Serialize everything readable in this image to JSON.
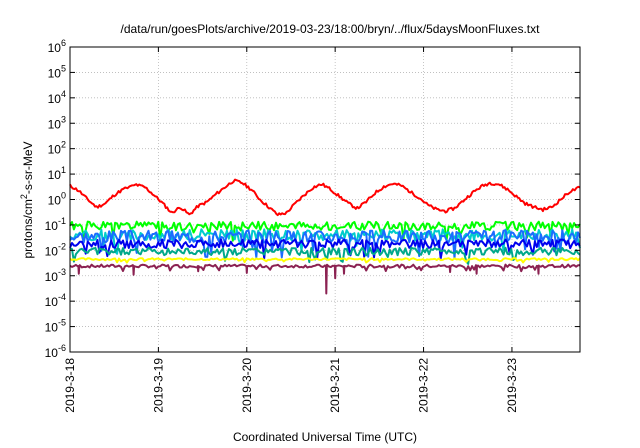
{
  "chart_data": {
    "type": "line",
    "title": "/data/run/goesPlots/archive/2019-03-23/18:00/bryn/../flux/5daysMoonFluxes.txt",
    "xlabel": "Coordinated Universal Time (UTC)",
    "ylabel": {
      "prefix": "protons/cm",
      "sup": "2",
      "suffix": "-s-sr-MeV"
    },
    "yscale": "log",
    "ylim_exp": [
      -6,
      6
    ],
    "y_tick_exponents": [
      6,
      5,
      4,
      3,
      2,
      1,
      0,
      -1,
      -2,
      -3,
      -4,
      -5,
      -6
    ],
    "y_tick_base": "10",
    "xlim_days": [
      0,
      5.77
    ],
    "x_tick_labels": [
      "2019-3-18",
      "2019-3-19",
      "2019-3-20",
      "2019-3-21",
      "2019-3-22",
      "2019-3-23"
    ],
    "x_tick_days": [
      0,
      1,
      2,
      3,
      4,
      5
    ],
    "grid": true,
    "series": [
      {
        "color": "#ff0000",
        "values": [
          [
            0.0,
            3.5
          ],
          [
            0.1,
            2.2
          ],
          [
            0.2,
            1.0
          ],
          [
            0.3,
            0.5
          ],
          [
            0.4,
            0.7
          ],
          [
            0.5,
            1.5
          ],
          [
            0.6,
            2.5
          ],
          [
            0.75,
            3.8
          ],
          [
            0.85,
            3.0
          ],
          [
            0.95,
            1.5
          ],
          [
            1.05,
            0.7
          ],
          [
            1.15,
            0.3
          ],
          [
            1.25,
            0.5
          ],
          [
            1.35,
            0.25
          ],
          [
            1.45,
            0.55
          ],
          [
            1.55,
            0.8
          ],
          [
            1.65,
            1.6
          ],
          [
            1.75,
            3.0
          ],
          [
            1.85,
            5.5
          ],
          [
            1.95,
            4.5
          ],
          [
            2.05,
            2.5
          ],
          [
            2.15,
            1.0
          ],
          [
            2.25,
            0.5
          ],
          [
            2.35,
            0.25
          ],
          [
            2.45,
            0.3
          ],
          [
            2.55,
            0.7
          ],
          [
            2.65,
            1.5
          ],
          [
            2.75,
            3.0
          ],
          [
            2.85,
            4.0
          ],
          [
            2.95,
            2.5
          ],
          [
            3.05,
            1.3
          ],
          [
            3.15,
            0.7
          ],
          [
            3.25,
            0.45
          ],
          [
            3.35,
            0.8
          ],
          [
            3.45,
            1.8
          ],
          [
            3.55,
            3.2
          ],
          [
            3.65,
            4.2
          ],
          [
            3.75,
            3.5
          ],
          [
            3.85,
            2.0
          ],
          [
            3.95,
            1.2
          ],
          [
            4.05,
            0.6
          ],
          [
            4.15,
            0.4
          ],
          [
            4.25,
            0.35
          ],
          [
            4.35,
            0.45
          ],
          [
            4.45,
            0.9
          ],
          [
            4.55,
            1.8
          ],
          [
            4.65,
            3.2
          ],
          [
            4.75,
            4.5
          ],
          [
            4.85,
            4.0
          ],
          [
            4.95,
            2.5
          ],
          [
            5.05,
            1.3
          ],
          [
            5.15,
            0.7
          ],
          [
            5.25,
            0.5
          ],
          [
            5.35,
            0.4
          ],
          [
            5.45,
            0.5
          ],
          [
            5.55,
            1.0
          ],
          [
            5.65,
            2.0
          ],
          [
            5.77,
            3.0
          ]
        ]
      },
      {
        "color": "#00ff00",
        "base": 0.09,
        "amp": 0.35,
        "seed": 1
      },
      {
        "color": "#00cccc",
        "base": 0.04,
        "amp": 0.45,
        "seed": 2
      },
      {
        "color": "#1a6cff",
        "base": 0.035,
        "amp": 0.5,
        "seed": 3
      },
      {
        "color": "#0000ee",
        "base": 0.018,
        "amp": 0.35,
        "seed": 4
      },
      {
        "color": "#00a88a",
        "base": 0.009,
        "amp": 0.3,
        "seed": 5
      },
      {
        "color": "#ffff00",
        "base": 0.0045,
        "amp": 0.08,
        "seed": 6
      },
      {
        "color": "#8b2252",
        "base": 0.0024,
        "amp": 0.12,
        "seed": 7,
        "dips": [
          [
            0.1,
            0.0012
          ],
          [
            0.72,
            0.0011
          ],
          [
            1.45,
            0.0015
          ],
          [
            2.0,
            0.0013
          ],
          [
            2.9,
            0.0002
          ],
          [
            3.0,
            0.0008
          ],
          [
            3.1,
            0.0012
          ],
          [
            4.3,
            0.0014
          ],
          [
            4.6,
            0.0012
          ],
          [
            5.3,
            0.0012
          ]
        ]
      }
    ]
  }
}
